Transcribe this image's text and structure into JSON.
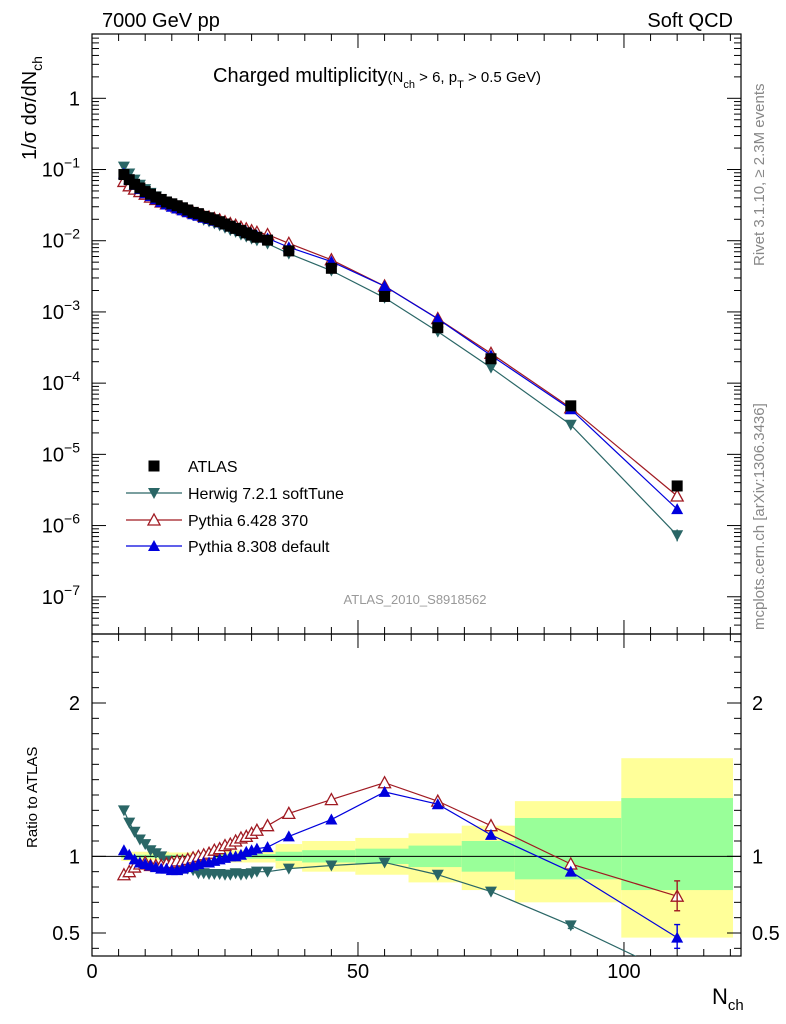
{
  "header": {
    "left": "7000 GeV pp",
    "right": "Soft QCD"
  },
  "side": {
    "rivet": "Rivet 3.1.10, ≥ 2.3M events",
    "mcplots": "mcplots.cern.ch [arXiv:1306.3436]"
  },
  "colors": {
    "atlas": "#000000",
    "herwig": "#2a6666",
    "pythia6": "#a01a22",
    "pythia8": "#0000dd",
    "band_inner": "#99ff99",
    "band_outer": "#ffff99",
    "refname": "#999999"
  },
  "chart_data": [
    {
      "type": "scatter",
      "title": "Charged multiplicity",
      "title_cond": {
        "p1": "(N",
        "s1": "ch",
        "p2": " > 6, p",
        "s2": "T",
        "p3": " > 0.5 GeV)"
      },
      "ylabel": "1/σ dσ/dN",
      "ylabel_sub": "ch",
      "yscale": "log",
      "ylim": [
        3e-08,
        8
      ],
      "xlim": [
        0,
        122
      ],
      "refname": "ATLAS_2010_S8918562",
      "y_ticks": [
        {
          "v": 1,
          "base": "1",
          "exp": ""
        },
        {
          "v": 0.1,
          "base": "10",
          "exp": "−1"
        },
        {
          "v": 0.01,
          "base": "10",
          "exp": "−2"
        },
        {
          "v": 0.001,
          "base": "10",
          "exp": "−3"
        },
        {
          "v": 0.0001,
          "base": "10",
          "exp": "−4"
        },
        {
          "v": 1e-05,
          "base": "10",
          "exp": "−5"
        },
        {
          "v": 1e-06,
          "base": "10",
          "exp": "−6"
        },
        {
          "v": 1e-07,
          "base": "10",
          "exp": "−7"
        }
      ],
      "legend": [
        "ATLAS",
        "Herwig 7.2.1 softTune",
        "Pythia 6.428 370",
        "Pythia 8.308 default"
      ],
      "legend_position": "lower-left",
      "x": [
        6,
        7,
        8,
        9,
        10,
        11,
        12,
        13,
        14,
        15,
        16,
        17,
        18,
        19,
        20,
        21,
        22,
        23,
        24,
        25,
        26,
        27,
        28,
        29,
        30,
        31,
        33,
        37,
        45,
        55,
        65,
        75,
        90,
        110
      ],
      "atlas": [
        0.085,
        0.072,
        0.062,
        0.055,
        0.049,
        0.045,
        0.041,
        0.038,
        0.035,
        0.033,
        0.031,
        0.029,
        0.027,
        0.025,
        0.024,
        0.022,
        0.021,
        0.0197,
        0.0185,
        0.0172,
        0.016,
        0.0149,
        0.0139,
        0.0129,
        0.012,
        0.0112,
        0.0102,
        0.0072,
        0.0041,
        0.00165,
        0.0006,
        0.00022,
        4.8e-05,
        3.6e-06
      ],
      "herwig": [
        0.11,
        0.088,
        0.072,
        0.061,
        0.053,
        0.047,
        0.042,
        0.038,
        0.034,
        0.031,
        0.0285,
        0.0265,
        0.0248,
        0.0228,
        0.0214,
        0.0196,
        0.0186,
        0.0175,
        0.0164,
        0.0152,
        0.0141,
        0.0133,
        0.0122,
        0.0114,
        0.0107,
        0.0101,
        0.0091,
        0.0066,
        0.0038,
        0.00158,
        0.00053,
        0.000165,
        2.6e-05,
        7.3e-07
      ],
      "pythia6": [
        0.068,
        0.059,
        0.053,
        0.049,
        0.045,
        0.041,
        0.038,
        0.035,
        0.033,
        0.032,
        0.0299,
        0.0282,
        0.0264,
        0.0248,
        0.0237,
        0.0222,
        0.0215,
        0.0205,
        0.0196,
        0.0185,
        0.0174,
        0.0165,
        0.0155,
        0.0147,
        0.0138,
        0.0131,
        0.0122,
        0.0092,
        0.0054,
        0.00231,
        0.000805,
        0.000262,
        4.5e-05,
        2.6e-06
      ],
      "pythia8": [
        0.088,
        0.073,
        0.061,
        0.053,
        0.0465,
        0.0423,
        0.0382,
        0.0349,
        0.0322,
        0.03,
        0.0283,
        0.0267,
        0.0251,
        0.0235,
        0.0224,
        0.021,
        0.0202,
        0.0191,
        0.0181,
        0.017,
        0.016,
        0.015,
        0.0142,
        0.0133,
        0.0125,
        0.0118,
        0.0108,
        0.0081,
        0.0051,
        0.0023,
        0.0008,
        0.000245,
        4.3e-05,
        1.7e-06
      ]
    },
    {
      "type": "scatter",
      "ylabel": "Ratio to ATLAS",
      "ylim": [
        0.35,
        2.45
      ],
      "xlim": [
        0,
        122
      ],
      "x_ticks": [
        0,
        50,
        100
      ],
      "xlabel": "N",
      "xlabel_sub": "ch",
      "y_ticks": [
        0.5,
        1,
        2
      ],
      "x": [
        6,
        7,
        8,
        9,
        10,
        11,
        12,
        13,
        14,
        15,
        16,
        17,
        18,
        19,
        20,
        21,
        22,
        23,
        24,
        25,
        26,
        27,
        28,
        29,
        30,
        31,
        33,
        37,
        45,
        55,
        65,
        75,
        90,
        110
      ],
      "herwig": [
        1.3,
        1.22,
        1.16,
        1.11,
        1.08,
        1.04,
        1.02,
        1.0,
        0.97,
        0.95,
        0.92,
        0.915,
        0.92,
        0.91,
        0.89,
        0.89,
        0.885,
        0.885,
        0.885,
        0.88,
        0.88,
        0.89,
        0.88,
        0.885,
        0.89,
        0.9,
        0.9,
        0.92,
        0.94,
        0.96,
        0.88,
        0.77,
        0.55,
        0.22
      ],
      "herwig_err": {
        "i": 32,
        "lo": 0.53,
        "hi": 0.575
      },
      "pythia6": [
        0.88,
        0.9,
        0.93,
        0.95,
        0.96,
        0.94,
        0.94,
        0.94,
        0.95,
        0.96,
        0.97,
        0.97,
        0.98,
        0.99,
        1.0,
        1.01,
        1.02,
        1.04,
        1.05,
        1.07,
        1.08,
        1.1,
        1.12,
        1.13,
        1.15,
        1.17,
        1.2,
        1.28,
        1.37,
        1.48,
        1.36,
        1.2,
        0.95,
        0.74
      ],
      "pythia6_err": {
        "i": 33,
        "lo": 0.645,
        "hi": 0.84
      },
      "pythia8": [
        1.04,
        1.01,
        0.98,
        0.96,
        0.95,
        0.94,
        0.93,
        0.92,
        0.92,
        0.91,
        0.91,
        0.92,
        0.93,
        0.94,
        0.95,
        0.96,
        0.96,
        0.97,
        0.98,
        0.99,
        1.0,
        1.0,
        1.01,
        1.03,
        1.04,
        1.05,
        1.06,
        1.13,
        1.24,
        1.42,
        1.34,
        1.14,
        0.9,
        0.47
      ],
      "pythia8_err": {
        "i": 33,
        "lo": 0.4,
        "hi": 0.555
      },
      "band_bins": [
        {
          "x0": 5.5,
          "x1": 9.5,
          "inner": [
            0.99,
            1.01
          ],
          "outer": [
            0.97,
            1.03
          ]
        },
        {
          "x0": 9.5,
          "x1": 14.5,
          "inner": [
            0.99,
            1.01
          ],
          "outer": [
            0.975,
            1.03
          ]
        },
        {
          "x0": 14.5,
          "x1": 22.5,
          "inner": [
            0.99,
            1.01
          ],
          "outer": [
            0.975,
            1.025
          ]
        },
        {
          "x0": 22.5,
          "x1": 34.5,
          "inner": [
            0.985,
            1.015
          ],
          "outer": [
            0.96,
            1.04
          ]
        },
        {
          "x0": 34.5,
          "x1": 39.5,
          "inner": [
            0.97,
            1.03
          ],
          "outer": [
            0.92,
            1.08
          ]
        },
        {
          "x0": 39.5,
          "x1": 49.5,
          "inner": [
            0.96,
            1.04
          ],
          "outer": [
            0.9,
            1.1
          ]
        },
        {
          "x0": 49.5,
          "x1": 59.5,
          "inner": [
            0.95,
            1.05
          ],
          "outer": [
            0.88,
            1.12
          ]
        },
        {
          "x0": 59.5,
          "x1": 69.5,
          "inner": [
            0.93,
            1.07
          ],
          "outer": [
            0.83,
            1.15
          ]
        },
        {
          "x0": 69.5,
          "x1": 79.5,
          "inner": [
            0.9,
            1.1
          ],
          "outer": [
            0.78,
            1.2
          ]
        },
        {
          "x0": 79.5,
          "x1": 99.5,
          "inner": [
            0.85,
            1.25
          ],
          "outer": [
            0.7,
            1.36
          ]
        },
        {
          "x0": 99.5,
          "x1": 120.5,
          "inner": [
            0.78,
            1.38
          ],
          "outer": [
            0.47,
            1.64
          ]
        }
      ]
    }
  ]
}
